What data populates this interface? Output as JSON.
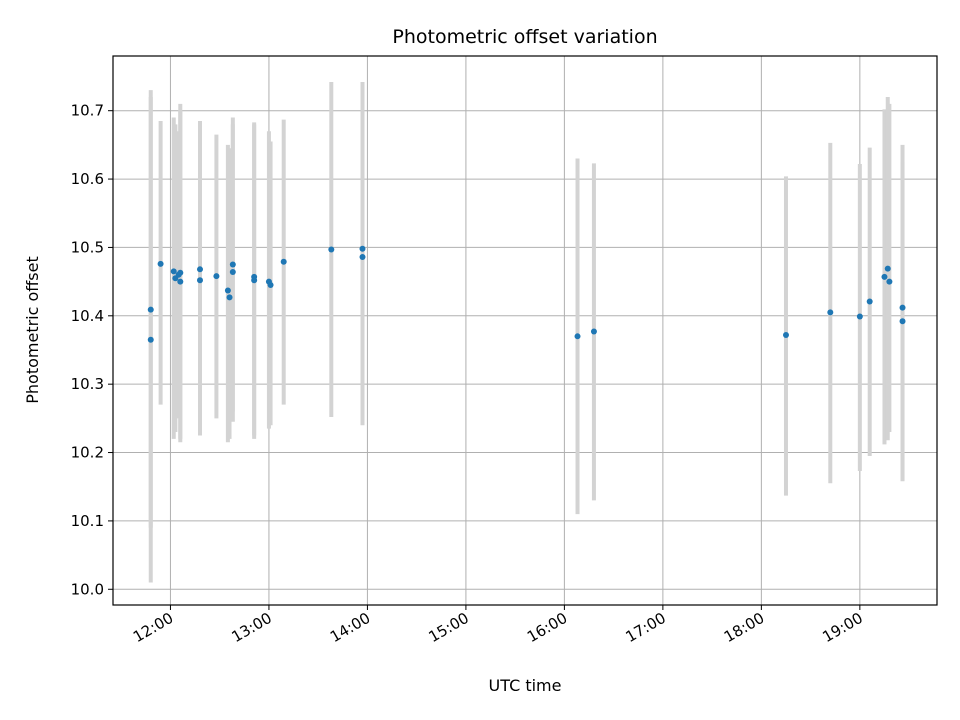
{
  "chart_data": {
    "type": "scatter",
    "title": "Photometric offset variation",
    "xlabel": "UTC time",
    "ylabel": "Photometric offset",
    "x_axis_type": "time",
    "xlim": [
      "11:25",
      "19:47"
    ],
    "ylim": [
      9.977,
      10.78
    ],
    "x_ticks": [
      "12:00",
      "13:00",
      "14:00",
      "15:00",
      "16:00",
      "17:00",
      "18:00",
      "19:00"
    ],
    "y_ticks": [
      "10.0",
      "10.1",
      "10.2",
      "10.3",
      "10.4",
      "10.5",
      "10.6",
      "10.7"
    ],
    "grid": true,
    "marker_color": "#1f77b4",
    "errorbar_color": "#d3d3d3",
    "points": [
      {
        "x": "11:48",
        "y": 10.365,
        "ylow": 10.01,
        "yhigh": 10.73
      },
      {
        "x": "11:48",
        "y": 10.409,
        "ylow": 10.09,
        "yhigh": 10.72
      },
      {
        "x": "11:54",
        "y": 10.476,
        "ylow": 10.27,
        "yhigh": 10.685
      },
      {
        "x": "12:02",
        "y": 10.465,
        "ylow": 10.22,
        "yhigh": 10.69
      },
      {
        "x": "12:03",
        "y": 10.455,
        "ylow": 10.23,
        "yhigh": 10.68
      },
      {
        "x": "12:05",
        "y": 10.46,
        "ylow": 10.25,
        "yhigh": 10.67
      },
      {
        "x": "12:06",
        "y": 10.45,
        "ylow": 10.22,
        "yhigh": 10.71
      },
      {
        "x": "12:06",
        "y": 10.463,
        "ylow": 10.215,
        "yhigh": 10.7
      },
      {
        "x": "12:18",
        "y": 10.468,
        "ylow": 10.225,
        "yhigh": 10.685
      },
      {
        "x": "12:18",
        "y": 10.452,
        "ylow": 10.25,
        "yhigh": 10.675
      },
      {
        "x": "12:28",
        "y": 10.458,
        "ylow": 10.25,
        "yhigh": 10.665
      },
      {
        "x": "12:35",
        "y": 10.437,
        "ylow": 10.215,
        "yhigh": 10.65
      },
      {
        "x": "12:36",
        "y": 10.427,
        "ylow": 10.22,
        "yhigh": 10.645
      },
      {
        "x": "12:38",
        "y": 10.475,
        "ylow": 10.245,
        "yhigh": 10.69
      },
      {
        "x": "12:38",
        "y": 10.464,
        "ylow": 10.26,
        "yhigh": 10.68
      },
      {
        "x": "12:51",
        "y": 10.457,
        "ylow": 10.22,
        "yhigh": 10.683
      },
      {
        "x": "12:51",
        "y": 10.452,
        "ylow": 10.225,
        "yhigh": 10.68
      },
      {
        "x": "13:00",
        "y": 10.45,
        "ylow": 10.235,
        "yhigh": 10.67
      },
      {
        "x": "13:01",
        "y": 10.445,
        "ylow": 10.24,
        "yhigh": 10.655
      },
      {
        "x": "13:09",
        "y": 10.479,
        "ylow": 10.27,
        "yhigh": 10.687
      },
      {
        "x": "13:38",
        "y": 10.497,
        "ylow": 10.252,
        "yhigh": 10.742
      },
      {
        "x": "13:57",
        "y": 10.486,
        "ylow": 10.24,
        "yhigh": 10.74
      },
      {
        "x": "13:57",
        "y": 10.498,
        "ylow": 10.255,
        "yhigh": 10.742
      },
      {
        "x": "16:08",
        "y": 10.37,
        "ylow": 10.11,
        "yhigh": 10.63
      },
      {
        "x": "16:18",
        "y": 10.377,
        "ylow": 10.13,
        "yhigh": 10.623
      },
      {
        "x": "18:15",
        "y": 10.372,
        "ylow": 10.137,
        "yhigh": 10.604
      },
      {
        "x": "18:42",
        "y": 10.405,
        "ylow": 10.155,
        "yhigh": 10.653
      },
      {
        "x": "19:00",
        "y": 10.399,
        "ylow": 10.173,
        "yhigh": 10.622
      },
      {
        "x": "19:06",
        "y": 10.421,
        "ylow": 10.195,
        "yhigh": 10.646
      },
      {
        "x": "19:15",
        "y": 10.457,
        "ylow": 10.212,
        "yhigh": 10.702
      },
      {
        "x": "19:17",
        "y": 10.469,
        "ylow": 10.218,
        "yhigh": 10.72
      },
      {
        "x": "19:18",
        "y": 10.45,
        "ylow": 10.23,
        "yhigh": 10.71
      },
      {
        "x": "19:26",
        "y": 10.412,
        "ylow": 10.158,
        "yhigh": 10.65
      },
      {
        "x": "19:26",
        "y": 10.392,
        "ylow": 10.16,
        "yhigh": 10.625
      }
    ]
  }
}
